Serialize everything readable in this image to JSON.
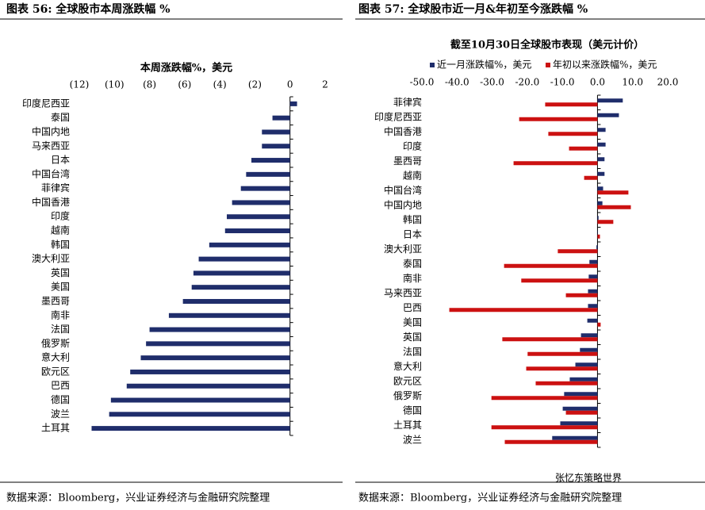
{
  "chart_data": [
    {
      "type": "hbar",
      "title": "图表 56:  全球股市本周涨跌幅  %",
      "subtitle": "本周涨跌幅%，美元",
      "source": "数据来源：Bloomberg，兴业证券经济与金融研究院整理",
      "categories": [
        "印度尼西亚",
        "泰国",
        "中国内地",
        "马来西亚",
        "日本",
        "中国台湾",
        "菲律宾",
        "中国香港",
        "印度",
        "越南",
        "韩国",
        "澳大利亚",
        "英国",
        "美国",
        "墨西哥",
        "南非",
        "法国",
        "俄罗斯",
        "意大利",
        "欧元区",
        "巴西",
        "德国",
        "波兰",
        "土耳其"
      ],
      "values": [
        0.4,
        -1.0,
        -1.6,
        -1.6,
        -2.2,
        -2.5,
        -2.8,
        -3.3,
        -3.6,
        -3.7,
        -4.6,
        -5.2,
        -5.5,
        -5.6,
        -6.1,
        -6.9,
        -8.0,
        -8.2,
        -8.5,
        -9.1,
        -9.3,
        -10.2,
        -10.3,
        -11.3
      ],
      "color": "#1f2d6b",
      "negative_tick_color": "#d01010",
      "xlim": [
        -12,
        2
      ],
      "xticks": [
        {
          "value": -12,
          "label": "(12)"
        },
        {
          "value": -10,
          "label": "(10)"
        },
        {
          "value": -8,
          "label": "(8)"
        },
        {
          "value": -6,
          "label": "(6)"
        },
        {
          "value": -4,
          "label": "(4)"
        },
        {
          "value": -2,
          "label": "(2)"
        },
        0,
        2
      ]
    },
    {
      "type": "grouped-hbar",
      "title": "图表 57:  全球股市近一月&年初至今涨跌幅  %",
      "subtitle": "截至10月30日全球股市表现（美元计价）",
      "source": "数据来源：Bloomberg，兴业证券经济与金融研究院整理",
      "annotation": "张忆东策略世界",
      "categories": [
        "菲律宾",
        "印度尼西亚",
        "中国香港",
        "印度",
        "墨西哥",
        "越南",
        "中国台湾",
        "中国内地",
        "韩国",
        "日本",
        "澳大利亚",
        "泰国",
        "南非",
        "马来西亚",
        "巴西",
        "美国",
        "英国",
        "法国",
        "意大利",
        "欧元区",
        "俄罗斯",
        "德国",
        "土耳其",
        "波兰"
      ],
      "series": [
        {
          "name": "近一月涨跌幅%，美元",
          "color": "#1f2d6b",
          "values": [
            7.2,
            6.1,
            2.3,
            2.3,
            2.0,
            2.0,
            1.6,
            1.4,
            0.3,
            0.1,
            -0.3,
            -2.3,
            -2.5,
            -2.7,
            -2.7,
            -2.9,
            -4.7,
            -5.0,
            -6.3,
            -7.9,
            -9.5,
            -9.9,
            -10.6,
            -12.9
          ]
        },
        {
          "name": "年初以来涨跌幅%，美元",
          "color": "#cc1111",
          "values": [
            -14.9,
            -22.3,
            -14.0,
            -8.1,
            -23.9,
            -3.8,
            8.8,
            9.5,
            4.5,
            0.7,
            -11.3,
            -26.6,
            -21.7,
            -9.0,
            -42.2,
            0.9,
            -27.1,
            -19.9,
            -20.3,
            -17.6,
            -30.2,
            -9.0,
            -30.2,
            -26.4
          ]
        }
      ],
      "negative_tick_color": "#d01010",
      "xlim": [
        -50,
        20
      ],
      "xticks": [
        {
          "value": -50,
          "label": "-50.0"
        },
        {
          "value": -40,
          "label": "-40.0"
        },
        {
          "value": -30,
          "label": "-30.0"
        },
        {
          "value": -20,
          "label": "-20.0"
        },
        {
          "value": -10,
          "label": "-10.0"
        },
        {
          "value": 0,
          "label": "0.0"
        },
        {
          "value": 10,
          "label": "10.0"
        },
        {
          "value": 20,
          "label": "20.0"
        }
      ]
    }
  ]
}
